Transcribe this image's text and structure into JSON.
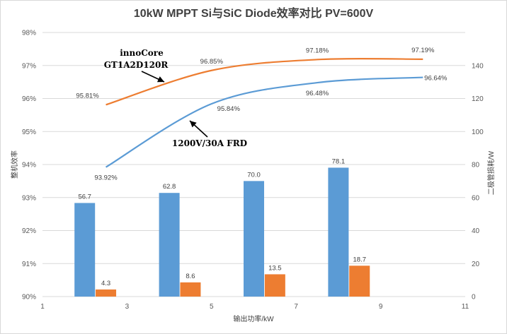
{
  "chart_data": {
    "type": "bar+line",
    "title": "10kW MPPT Si与SiC Diode效率对比 PV=600V",
    "xlabel": "输出功率/kW",
    "ylabel_left": "整机效率",
    "ylabel_right": "二极管损耗/W",
    "x_ticks": [
      "1",
      "3",
      "5",
      "7",
      "9",
      "11"
    ],
    "y_left_ticks": [
      "90%",
      "91%",
      "92%",
      "93%",
      "94%",
      "95%",
      "96%",
      "97%",
      "98%"
    ],
    "y_right_ticks": [
      "0",
      "20",
      "40",
      "60",
      "80",
      "100",
      "120",
      "140"
    ],
    "xlim": [
      1,
      11
    ],
    "ylim_left": [
      90,
      98
    ],
    "ylim_right": [
      0,
      160
    ],
    "grid": true,
    "bar_series": [
      {
        "color": "#5b9bd5",
        "x": [
          2,
          4,
          6,
          8
        ],
        "values": [
          56.7,
          62.8,
          70.0,
          78.1
        ],
        "labels": [
          "56.7",
          "62.8",
          "70.0",
          "78.1"
        ]
      },
      {
        "color": "#ed7d31",
        "x": [
          2.5,
          4.5,
          6.5,
          8.5
        ],
        "values": [
          4.3,
          8.6,
          13.5,
          18.7
        ],
        "labels": [
          "4.3",
          "8.6",
          "13.5",
          "18.7"
        ]
      }
    ],
    "line_series": [
      {
        "color": "#ed7d31",
        "x": [
          2.5,
          5,
          7.5,
          10
        ],
        "values": [
          95.81,
          96.85,
          97.18,
          97.19
        ],
        "labels": [
          "95.81%",
          "96.85%",
          "97.18%",
          "97.19%"
        ]
      },
      {
        "color": "#5b9bd5",
        "x": [
          2.5,
          5,
          7.5,
          10
        ],
        "values": [
          93.92,
          95.84,
          96.48,
          96.64
        ],
        "labels": [
          "93.92%",
          "95.84%",
          "96.48%",
          "96.64%"
        ]
      }
    ],
    "annotations": [
      {
        "lines": [
          "innoCore",
          "GT1A2D120R"
        ]
      },
      {
        "lines": [
          "1200V/30A FRD"
        ]
      }
    ]
  }
}
